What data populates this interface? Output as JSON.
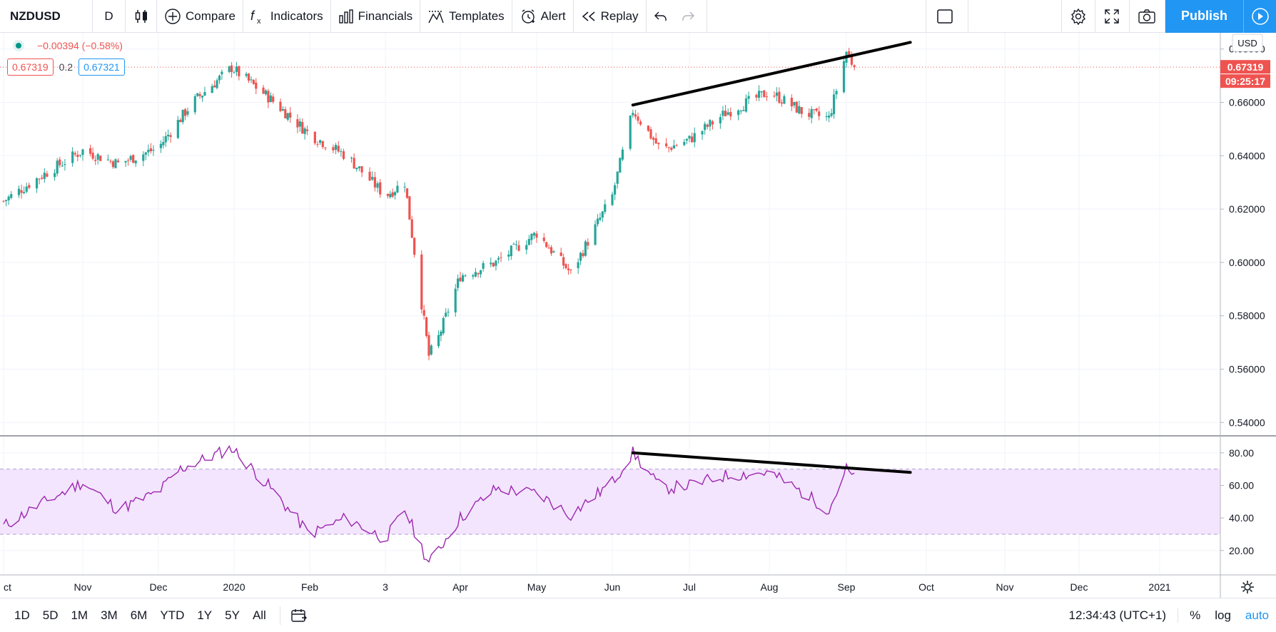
{
  "toolbar": {
    "symbol": "NZDUSD",
    "interval": "D",
    "compare": "Compare",
    "indicators": "Indicators",
    "financials": "Financials",
    "templates": "Templates",
    "alert": "Alert",
    "replay": "Replay",
    "publish": "Publish"
  },
  "legend": {
    "change": "−0.00394 (−0.58%)",
    "bid": "0.67319",
    "spread": "0.2",
    "ask": "0.67321"
  },
  "price_axis": {
    "currency": "USD",
    "last_price": "0.67319",
    "countdown": "09:25:17"
  },
  "bottom": {
    "ranges": [
      "1D",
      "5D",
      "1M",
      "3M",
      "6M",
      "YTD",
      "1Y",
      "5Y",
      "All"
    ],
    "clock": "12:34:43 (UTC+1)",
    "percent": "%",
    "log": "log",
    "auto": "auto"
  },
  "colors": {
    "up": "#26a69a",
    "down": "#ef5350",
    "rsi_line": "#9c27b0",
    "rsi_band": "#f3e5fd",
    "accent": "#2196f3"
  },
  "chart_data": [
    {
      "type": "candlestick",
      "series_name": "NZDUSD",
      "x_tick_labels": [
        "ct",
        "Nov",
        "Dec",
        "2020",
        "Feb",
        "3",
        "Apr",
        "May",
        "Jun",
        "Jul",
        "Aug",
        "Sep",
        "Oct",
        "Nov",
        "Dec",
        "2021"
      ],
      "y_tick_labels": [
        "0.68000",
        "0.66000",
        "0.64000",
        "0.62000",
        "0.60000",
        "0.58000",
        "0.56000",
        "0.54000"
      ],
      "ylim": [
        0.535,
        0.685
      ],
      "anchor_closes": [
        {
          "date": "2019-10-01",
          "close": 0.623
        },
        {
          "date": "2019-10-15",
          "close": 0.632
        },
        {
          "date": "2019-11-01",
          "close": 0.642
        },
        {
          "date": "2019-11-15",
          "close": 0.637
        },
        {
          "date": "2019-12-01",
          "close": 0.643
        },
        {
          "date": "2019-12-15",
          "close": 0.66
        },
        {
          "date": "2019-12-31",
          "close": 0.673
        },
        {
          "date": "2020-01-15",
          "close": 0.662
        },
        {
          "date": "2020-02-01",
          "close": 0.648
        },
        {
          "date": "2020-02-15",
          "close": 0.64
        },
        {
          "date": "2020-03-01",
          "close": 0.625
        },
        {
          "date": "2020-03-09",
          "close": 0.63
        },
        {
          "date": "2020-03-19",
          "close": 0.565
        },
        {
          "date": "2020-03-23",
          "close": 0.572
        },
        {
          "date": "2020-04-01",
          "close": 0.595
        },
        {
          "date": "2020-04-15",
          "close": 0.6
        },
        {
          "date": "2020-05-01",
          "close": 0.611
        },
        {
          "date": "2020-05-15",
          "close": 0.596
        },
        {
          "date": "2020-06-01",
          "close": 0.625
        },
        {
          "date": "2020-06-09",
          "close": 0.657
        },
        {
          "date": "2020-06-20",
          "close": 0.642
        },
        {
          "date": "2020-07-01",
          "close": 0.646
        },
        {
          "date": "2020-07-15",
          "close": 0.656
        },
        {
          "date": "2020-08-01",
          "close": 0.664
        },
        {
          "date": "2020-08-15",
          "close": 0.656
        },
        {
          "date": "2020-08-25",
          "close": 0.654
        },
        {
          "date": "2020-09-01",
          "close": 0.679
        },
        {
          "date": "2020-09-04",
          "close": 0.6732
        }
      ],
      "last_price": 0.67319,
      "trendline": {
        "from": {
          "date": "2020-06-09",
          "value": 0.659
        },
        "to": {
          "date": "2020-09-25",
          "value": 0.6825
        }
      }
    },
    {
      "type": "line",
      "series_name": "RSI",
      "y_tick_labels": [
        "80.00",
        "60.00",
        "40.00",
        "20.00"
      ],
      "ylim": [
        5,
        90
      ],
      "band": [
        30,
        70
      ],
      "anchor_values": [
        {
          "date": "2019-10-01",
          "value": 35
        },
        {
          "date": "2019-10-15",
          "value": 48
        },
        {
          "date": "2019-11-01",
          "value": 62
        },
        {
          "date": "2019-11-15",
          "value": 45
        },
        {
          "date": "2019-12-01",
          "value": 56
        },
        {
          "date": "2019-12-10",
          "value": 70
        },
        {
          "date": "2019-12-31",
          "value": 83
        },
        {
          "date": "2020-01-15",
          "value": 60
        },
        {
          "date": "2020-02-01",
          "value": 30
        },
        {
          "date": "2020-02-15",
          "value": 40
        },
        {
          "date": "2020-03-01",
          "value": 27
        },
        {
          "date": "2020-03-09",
          "value": 45
        },
        {
          "date": "2020-03-19",
          "value": 12
        },
        {
          "date": "2020-04-01",
          "value": 40
        },
        {
          "date": "2020-04-15",
          "value": 58
        },
        {
          "date": "2020-05-01",
          "value": 55
        },
        {
          "date": "2020-05-15",
          "value": 42
        },
        {
          "date": "2020-06-01",
          "value": 62
        },
        {
          "date": "2020-06-09",
          "value": 80
        },
        {
          "date": "2020-06-20",
          "value": 58
        },
        {
          "date": "2020-07-01",
          "value": 60
        },
        {
          "date": "2020-07-15",
          "value": 66
        },
        {
          "date": "2020-08-01",
          "value": 68
        },
        {
          "date": "2020-08-15",
          "value": 55
        },
        {
          "date": "2020-08-25",
          "value": 45
        },
        {
          "date": "2020-09-01",
          "value": 70
        },
        {
          "date": "2020-09-04",
          "value": 64
        }
      ],
      "trendline": {
        "from": {
          "date": "2020-06-09",
          "value": 80
        },
        "to": {
          "date": "2020-09-25",
          "value": 68
        }
      }
    }
  ]
}
